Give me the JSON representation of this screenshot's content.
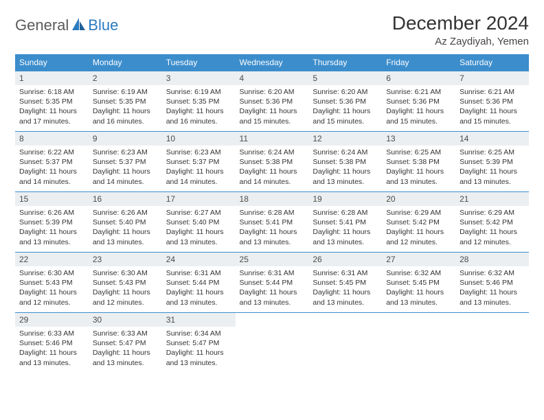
{
  "brand": {
    "part1": "General",
    "part2": "Blue"
  },
  "title": "December 2024",
  "location": "Az Zaydiyah, Yemen",
  "colors": {
    "header_bg": "#3c8dcc",
    "header_text": "#ffffff",
    "daynum_bg": "#eceff1",
    "border": "#3c8dcc",
    "logo_gray": "#5a5a5a",
    "logo_blue": "#2a7ac0"
  },
  "day_names": [
    "Sunday",
    "Monday",
    "Tuesday",
    "Wednesday",
    "Thursday",
    "Friday",
    "Saturday"
  ],
  "days": [
    {
      "n": "1",
      "sr": "6:18 AM",
      "ss": "5:35 PM",
      "dl": "11 hours and 17 minutes."
    },
    {
      "n": "2",
      "sr": "6:19 AM",
      "ss": "5:35 PM",
      "dl": "11 hours and 16 minutes."
    },
    {
      "n": "3",
      "sr": "6:19 AM",
      "ss": "5:35 PM",
      "dl": "11 hours and 16 minutes."
    },
    {
      "n": "4",
      "sr": "6:20 AM",
      "ss": "5:36 PM",
      "dl": "11 hours and 15 minutes."
    },
    {
      "n": "5",
      "sr": "6:20 AM",
      "ss": "5:36 PM",
      "dl": "11 hours and 15 minutes."
    },
    {
      "n": "6",
      "sr": "6:21 AM",
      "ss": "5:36 PM",
      "dl": "11 hours and 15 minutes."
    },
    {
      "n": "7",
      "sr": "6:21 AM",
      "ss": "5:36 PM",
      "dl": "11 hours and 15 minutes."
    },
    {
      "n": "8",
      "sr": "6:22 AM",
      "ss": "5:37 PM",
      "dl": "11 hours and 14 minutes."
    },
    {
      "n": "9",
      "sr": "6:23 AM",
      "ss": "5:37 PM",
      "dl": "11 hours and 14 minutes."
    },
    {
      "n": "10",
      "sr": "6:23 AM",
      "ss": "5:37 PM",
      "dl": "11 hours and 14 minutes."
    },
    {
      "n": "11",
      "sr": "6:24 AM",
      "ss": "5:38 PM",
      "dl": "11 hours and 14 minutes."
    },
    {
      "n": "12",
      "sr": "6:24 AM",
      "ss": "5:38 PM",
      "dl": "11 hours and 13 minutes."
    },
    {
      "n": "13",
      "sr": "6:25 AM",
      "ss": "5:38 PM",
      "dl": "11 hours and 13 minutes."
    },
    {
      "n": "14",
      "sr": "6:25 AM",
      "ss": "5:39 PM",
      "dl": "11 hours and 13 minutes."
    },
    {
      "n": "15",
      "sr": "6:26 AM",
      "ss": "5:39 PM",
      "dl": "11 hours and 13 minutes."
    },
    {
      "n": "16",
      "sr": "6:26 AM",
      "ss": "5:40 PM",
      "dl": "11 hours and 13 minutes."
    },
    {
      "n": "17",
      "sr": "6:27 AM",
      "ss": "5:40 PM",
      "dl": "11 hours and 13 minutes."
    },
    {
      "n": "18",
      "sr": "6:28 AM",
      "ss": "5:41 PM",
      "dl": "11 hours and 13 minutes."
    },
    {
      "n": "19",
      "sr": "6:28 AM",
      "ss": "5:41 PM",
      "dl": "11 hours and 13 minutes."
    },
    {
      "n": "20",
      "sr": "6:29 AM",
      "ss": "5:42 PM",
      "dl": "11 hours and 12 minutes."
    },
    {
      "n": "21",
      "sr": "6:29 AM",
      "ss": "5:42 PM",
      "dl": "11 hours and 12 minutes."
    },
    {
      "n": "22",
      "sr": "6:30 AM",
      "ss": "5:43 PM",
      "dl": "11 hours and 12 minutes."
    },
    {
      "n": "23",
      "sr": "6:30 AM",
      "ss": "5:43 PM",
      "dl": "11 hours and 12 minutes."
    },
    {
      "n": "24",
      "sr": "6:31 AM",
      "ss": "5:44 PM",
      "dl": "11 hours and 13 minutes."
    },
    {
      "n": "25",
      "sr": "6:31 AM",
      "ss": "5:44 PM",
      "dl": "11 hours and 13 minutes."
    },
    {
      "n": "26",
      "sr": "6:31 AM",
      "ss": "5:45 PM",
      "dl": "11 hours and 13 minutes."
    },
    {
      "n": "27",
      "sr": "6:32 AM",
      "ss": "5:45 PM",
      "dl": "11 hours and 13 minutes."
    },
    {
      "n": "28",
      "sr": "6:32 AM",
      "ss": "5:46 PM",
      "dl": "11 hours and 13 minutes."
    },
    {
      "n": "29",
      "sr": "6:33 AM",
      "ss": "5:46 PM",
      "dl": "11 hours and 13 minutes."
    },
    {
      "n": "30",
      "sr": "6:33 AM",
      "ss": "5:47 PM",
      "dl": "11 hours and 13 minutes."
    },
    {
      "n": "31",
      "sr": "6:34 AM",
      "ss": "5:47 PM",
      "dl": "11 hours and 13 minutes."
    }
  ],
  "labels": {
    "sunrise": "Sunrise: ",
    "sunset": "Sunset: ",
    "daylight": "Daylight: "
  },
  "layout": {
    "start_offset": 0,
    "total_cells": 35
  }
}
